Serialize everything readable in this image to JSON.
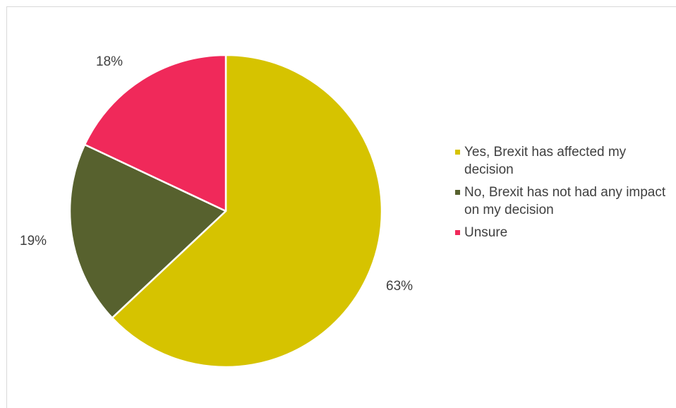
{
  "chart_data": {
    "type": "pie",
    "slices": [
      {
        "label": "Yes, Brexit has affected my decision",
        "value": 63,
        "value_label": "63%",
        "color": "#D6C300"
      },
      {
        "label": "No, Brexit has not had any impact on my decision",
        "value": 19,
        "value_label": "19%",
        "color": "#57612E"
      },
      {
        "label": "Unsure",
        "value": 18,
        "value_label": "18%",
        "color": "#F0295A"
      }
    ],
    "start_angle_deg": 0,
    "direction": "clockwise",
    "legend_position": "right"
  }
}
